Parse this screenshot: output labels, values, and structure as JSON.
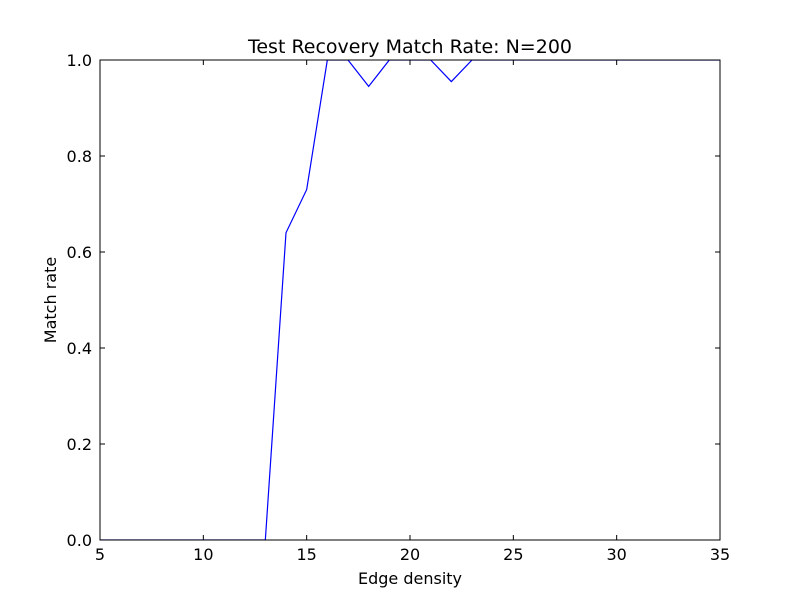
{
  "chart_data": {
    "type": "line",
    "title": "Test Recovery Match Rate: N=200",
    "xlabel": "Edge density",
    "ylabel": "Match rate",
    "xlim": [
      5,
      35
    ],
    "ylim": [
      0.0,
      1.0
    ],
    "x_ticks": [
      5,
      10,
      15,
      20,
      25,
      30,
      35
    ],
    "x_tick_labels": [
      "5",
      "10",
      "15",
      "20",
      "25",
      "30",
      "35"
    ],
    "y_ticks": [
      0.0,
      0.2,
      0.4,
      0.6,
      0.8,
      1.0
    ],
    "y_tick_labels": [
      "0.0",
      "0.2",
      "0.4",
      "0.6",
      "0.8",
      "1.0"
    ],
    "grid": false,
    "legend": "none",
    "series": [
      {
        "color": "#0000ff",
        "x": [
          5,
          6,
          7,
          8,
          9,
          10,
          11,
          12,
          13,
          14,
          15,
          16,
          17,
          18,
          19,
          20,
          21,
          22,
          23,
          24,
          25,
          26,
          27,
          28,
          29,
          30,
          31,
          32,
          33,
          34,
          35
        ],
        "y": [
          0.0,
          0.0,
          0.0,
          0.0,
          0.0,
          0.0,
          0.0,
          0.0,
          0.0,
          0.64,
          0.73,
          1.0,
          1.0,
          0.945,
          1.0,
          1.0,
          1.0,
          0.955,
          1.0,
          1.0,
          1.0,
          1.0,
          1.0,
          1.0,
          1.0,
          1.0,
          1.0,
          1.0,
          1.0,
          1.0,
          1.0
        ]
      }
    ]
  }
}
